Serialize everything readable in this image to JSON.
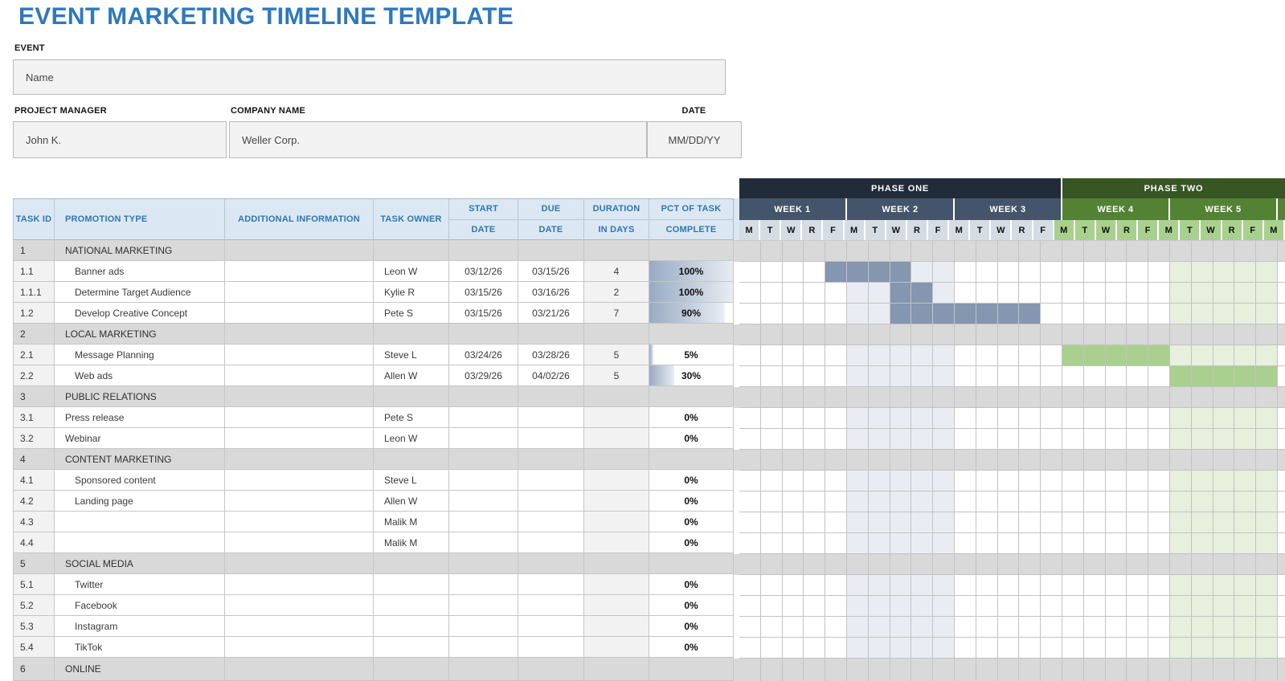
{
  "title": "EVENT MARKETING TIMELINE TEMPLATE",
  "accent_color": "#2e75b6",
  "form": {
    "event_label": "EVENT",
    "event_value": "Name",
    "pm_label": "PROJECT MANAGER",
    "pm_value": "John K.",
    "company_label": "COMPANY NAME",
    "company_value": "Weller Corp.",
    "date_label": "DATE",
    "date_value": "MM/DD/YY"
  },
  "table": {
    "headers": {
      "task_id": "TASK ID",
      "promotion_type": "PROMOTION TYPE",
      "additional_info": "ADDITIONAL INFORMATION",
      "task_owner": "TASK OWNER",
      "start_top": "START",
      "start_bottom": "DATE",
      "due_top": "DUE",
      "due_bottom": "DATE",
      "duration_top": "DURATION",
      "duration_bottom": "IN DAYS",
      "pct_top": "PCT OF TASK",
      "pct_bottom": "COMPLETE"
    },
    "rows": [
      {
        "id": "1",
        "name": "NATIONAL MARKETING",
        "section": true
      },
      {
        "id": "1.1",
        "name": "Banner ads",
        "indent": true,
        "owner": "Leon W",
        "start": "03/12/26",
        "due": "03/15/26",
        "days": "4",
        "pct": "100%",
        "pct_value": 100,
        "bar": {
          "start": 5,
          "len": 4,
          "phase": 1
        }
      },
      {
        "id": "1.1.1",
        "name": "Determine Target Audience",
        "indent": true,
        "owner": "Kylie R",
        "start": "03/15/26",
        "due": "03/16/26",
        "days": "2",
        "pct": "100%",
        "pct_value": 100,
        "bar": {
          "start": 8,
          "len": 2,
          "phase": 1
        }
      },
      {
        "id": "1.2",
        "name": "Develop Creative Concept",
        "indent": true,
        "owner": "Pete S",
        "start": "03/15/26",
        "due": "03/21/26",
        "days": "7",
        "pct": "90%",
        "pct_value": 90,
        "bar": {
          "start": 8,
          "len": 7,
          "phase": 1
        }
      },
      {
        "id": "2",
        "name": "LOCAL MARKETING",
        "section": true
      },
      {
        "id": "2.1",
        "name": "Message Planning",
        "indent": true,
        "owner": "Steve L",
        "start": "03/24/26",
        "due": "03/28/26",
        "days": "5",
        "pct": "5%",
        "pct_value": 5,
        "bar": {
          "start": 16,
          "len": 5,
          "phase": 2
        }
      },
      {
        "id": "2.2",
        "name": "Web ads",
        "indent": true,
        "owner": "Allen W",
        "start": "03/29/26",
        "due": "04/02/26",
        "days": "5",
        "pct": "30%",
        "pct_value": 30,
        "bar": {
          "start": 21,
          "len": 5,
          "phase": 2
        }
      },
      {
        "id": "3",
        "name": "PUBLIC RELATIONS",
        "section": true
      },
      {
        "id": "3.1",
        "name": "Press release",
        "indent": false,
        "owner": "Pete S",
        "start": "",
        "due": "",
        "days": "",
        "pct": "0%",
        "pct_value": 0
      },
      {
        "id": "3.2",
        "name": "Webinar",
        "indent": false,
        "owner": "Leon W",
        "start": "",
        "due": "",
        "days": "",
        "pct": "0%",
        "pct_value": 0
      },
      {
        "id": "4",
        "name": "CONTENT MARKETING",
        "section": true
      },
      {
        "id": "4.1",
        "name": "Sponsored content",
        "indent": true,
        "owner": "Steve L",
        "start": "",
        "due": "",
        "days": "",
        "pct": "0%",
        "pct_value": 0
      },
      {
        "id": "4.2",
        "name": "Landing page",
        "indent": true,
        "owner": "Allen W",
        "start": "",
        "due": "",
        "days": "",
        "pct": "0%",
        "pct_value": 0
      },
      {
        "id": "4.3",
        "name": "",
        "indent": true,
        "owner": "Malik M",
        "start": "",
        "due": "",
        "days": "",
        "pct": "0%",
        "pct_value": 0
      },
      {
        "id": "4.4",
        "name": "",
        "indent": true,
        "owner": "Malik M",
        "start": "",
        "due": "",
        "days": "",
        "pct": "0%",
        "pct_value": 0
      },
      {
        "id": "5",
        "name": "SOCIAL MEDIA",
        "section": true
      },
      {
        "id": "5.1",
        "name": "Twitter",
        "indent": true,
        "owner": "",
        "start": "",
        "due": "",
        "days": "",
        "pct": "0%",
        "pct_value": 0
      },
      {
        "id": "5.2",
        "name": "Facebook",
        "indent": true,
        "owner": "",
        "start": "",
        "due": "",
        "days": "",
        "pct": "0%",
        "pct_value": 0
      },
      {
        "id": "5.3",
        "name": "Instagram",
        "indent": true,
        "owner": "",
        "start": "",
        "due": "",
        "days": "",
        "pct": "0%",
        "pct_value": 0
      },
      {
        "id": "5.4",
        "name": "TikTok",
        "indent": true,
        "owner": "",
        "start": "",
        "due": "",
        "days": "",
        "pct": "0%",
        "pct_value": 0
      },
      {
        "id": "6",
        "name": "ONLINE",
        "section": true,
        "partial": true
      }
    ]
  },
  "gantt": {
    "day_labels": [
      "M",
      "T",
      "W",
      "R",
      "F"
    ],
    "total_day_cols": 26,
    "phase1": {
      "label": "PHASE ONE",
      "weeks": [
        "WEEK 1",
        "WEEK 2",
        "WEEK 3"
      ],
      "header_color": "#222b3a",
      "week_color": "#44546a",
      "day_header_bg": "#d6dce4",
      "bar_color": "#8496b0",
      "band_bg": "#e9edf3",
      "band_cols": [
        6,
        10
      ]
    },
    "phase2": {
      "label": "PHASE TWO",
      "weeks": [
        "WEEK 4",
        "WEEK 5"
      ],
      "header_color": "#375623",
      "week_color": "#548235",
      "day_header_bg": "#a9d08e",
      "bar_color": "#a9d08e",
      "band_bg": "#e6f0dd",
      "band_cols": [
        21,
        25
      ]
    },
    "section_row_bg": "#d9d9d9",
    "pct_bar_gradient": [
      "#98aac3",
      "#e8edf4"
    ]
  }
}
